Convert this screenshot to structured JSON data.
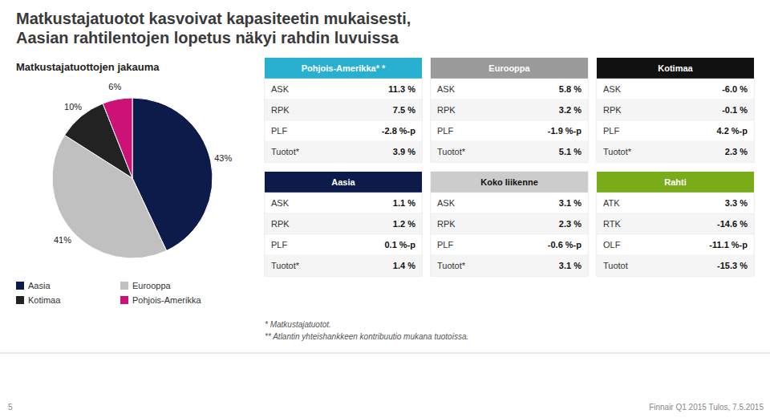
{
  "title_lines": [
    "Matkustajatuotot kasvoivat kapasiteetin mukaisesti,",
    "Aasian rahtilentojen lopetus näkyi rahdin luvuissa"
  ],
  "notes": [
    "* Matkustajatuotot.",
    "** Atlantin yhteishankkeen kontribuutio mukana tuotoissa."
  ],
  "footer": "Finnair Q1 2015 Tulos, 7.5.2015",
  "page_number": "5",
  "chart_data": [
    {
      "type": "pie",
      "title": "Matkustajatuottojen jakauma",
      "categories": [
        "Aasia",
        "Eurooppa",
        "Kotimaa",
        "Pohjois-Amerikka"
      ],
      "values": [
        43,
        41,
        10,
        6
      ],
      "value_labels": [
        "43%",
        "41%",
        "10%",
        "6%"
      ],
      "colors": [
        "#0d1b4b",
        "#c0c0c0",
        "#222222",
        "#cc1177"
      ],
      "data_labels": true
    },
    {
      "type": "table",
      "title": "Pohjois-Amerikka* *",
      "color": "#29b0d0",
      "categories": [
        "ASK",
        "RPK",
        "PLF",
        "Tuotot*"
      ],
      "values": [
        11.3,
        7.5,
        -2.8,
        3.9
      ],
      "value_labels": [
        "11.3 %",
        "7.5 %",
        "-2.8 %-p",
        "3.9 %"
      ]
    },
    {
      "type": "table",
      "title": "Eurooppa",
      "color": "#9a9a9a",
      "categories": [
        "ASK",
        "RPK",
        "PLF",
        "Tuotot*"
      ],
      "values": [
        5.8,
        3.2,
        -1.9,
        5.1
      ],
      "value_labels": [
        "5.8 %",
        "3.2 %",
        "-1.9 %-p",
        "5.1 %"
      ]
    },
    {
      "type": "table",
      "title": "Kotimaa",
      "color": "#111111",
      "categories": [
        "ASK",
        "RPK",
        "PLF",
        "Tuotot*"
      ],
      "values": [
        -6.0,
        -0.1,
        4.2,
        2.3
      ],
      "value_labels": [
        "-6.0 %",
        "-0.1 %",
        "4.2 %-p",
        "2.3 %"
      ]
    },
    {
      "type": "table",
      "title": "Aasia",
      "color": "#0d1b4b",
      "categories": [
        "ASK",
        "RPK",
        "PLF",
        "Tuotot*"
      ],
      "values": [
        1.1,
        1.2,
        0.1,
        1.4
      ],
      "value_labels": [
        "1.1 %",
        "1.2 %",
        "0.1 %-p",
        "1.4 %"
      ]
    },
    {
      "type": "table",
      "title": "Koko liikenne",
      "color": "#cccccc",
      "categories": [
        "ASK",
        "RPK",
        "PLF",
        "Tuotot*"
      ],
      "values": [
        3.1,
        2.3,
        -0.6,
        3.1
      ],
      "value_labels": [
        "3.1 %",
        "2.3 %",
        "-0.6 %-p",
        "3.1 %"
      ]
    },
    {
      "type": "table",
      "title": "Rahti",
      "color": "#7aab18",
      "categories": [
        "ATK",
        "RTK",
        "OLF",
        "Tuotot"
      ],
      "values": [
        3.3,
        -14.6,
        -11.1,
        -15.3
      ],
      "value_labels": [
        "3.3 %",
        "-14.6 %",
        "-11.1 %-p",
        "-15.3 %"
      ]
    }
  ]
}
